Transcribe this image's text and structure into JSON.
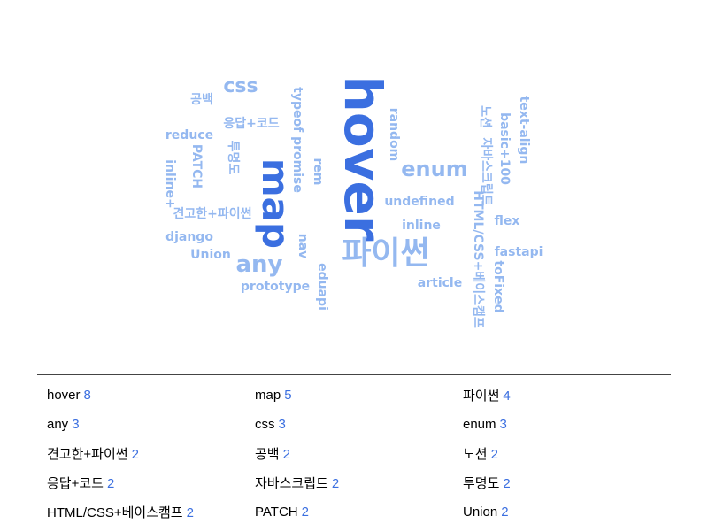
{
  "colors": {
    "strong": "#3b6fe0",
    "mid": "#6f9be8",
    "light": "#94b8f0",
    "count": "#3b6fe0",
    "divider": "#444444"
  },
  "cloud": {
    "words": [
      {
        "text": "hover",
        "weight": 8,
        "rotated": true
      },
      {
        "text": "map",
        "weight": 5,
        "rotated": true
      },
      {
        "text": "파이썬",
        "weight": 4,
        "rotated": false
      },
      {
        "text": "any",
        "weight": 3,
        "rotated": false
      },
      {
        "text": "css",
        "weight": 3,
        "rotated": false
      },
      {
        "text": "enum",
        "weight": 3,
        "rotated": false
      },
      {
        "text": "견고한+파이썬",
        "weight": 2,
        "rotated": false
      },
      {
        "text": "공백",
        "weight": 2,
        "rotated": false
      },
      {
        "text": "노션",
        "weight": 2,
        "rotated": true
      },
      {
        "text": "응답+코드",
        "weight": 2,
        "rotated": false
      },
      {
        "text": "자바스크립트",
        "weight": 2,
        "rotated": true
      },
      {
        "text": "투명도",
        "weight": 2,
        "rotated": true
      },
      {
        "text": "HTML/CSS+베이스캠프",
        "weight": 2,
        "rotated": true
      },
      {
        "text": "PATCH",
        "weight": 2,
        "rotated": true
      },
      {
        "text": "Union",
        "weight": 2,
        "rotated": false
      },
      {
        "text": "reduce",
        "weight": 1,
        "rotated": false
      },
      {
        "text": "inline+",
        "weight": 1,
        "rotated": true
      },
      {
        "text": "django",
        "weight": 1,
        "rotated": false
      },
      {
        "text": "prototype",
        "weight": 1,
        "rotated": false
      },
      {
        "text": "typeof promise",
        "weight": 1,
        "rotated": true
      },
      {
        "text": "rem",
        "weight": 1,
        "rotated": true
      },
      {
        "text": "nav",
        "weight": 1,
        "rotated": true
      },
      {
        "text": "eduapi",
        "weight": 1,
        "rotated": true
      },
      {
        "text": "random",
        "weight": 1,
        "rotated": true
      },
      {
        "text": "undefined",
        "weight": 1,
        "rotated": false
      },
      {
        "text": "inline",
        "weight": 1,
        "rotated": false
      },
      {
        "text": "article",
        "weight": 1,
        "rotated": false
      },
      {
        "text": "text-align",
        "weight": 1,
        "rotated": true
      },
      {
        "text": "basic+100",
        "weight": 1,
        "rotated": true
      },
      {
        "text": "flex",
        "weight": 1,
        "rotated": false
      },
      {
        "text": "fastapi",
        "weight": 1,
        "rotated": false
      },
      {
        "text": "toFixed",
        "weight": 1,
        "rotated": true
      }
    ]
  },
  "stats": [
    [
      {
        "term": "hover",
        "count": "8"
      },
      {
        "term": "map",
        "count": "5"
      },
      {
        "term": "파이썬",
        "count": "4"
      }
    ],
    [
      {
        "term": "any",
        "count": "3"
      },
      {
        "term": "css",
        "count": "3"
      },
      {
        "term": "enum",
        "count": "3"
      }
    ],
    [
      {
        "term": "견고한+파이썬",
        "count": "2"
      },
      {
        "term": "공백",
        "count": "2"
      },
      {
        "term": "노션",
        "count": "2"
      }
    ],
    [
      {
        "term": "응답+코드",
        "count": "2"
      },
      {
        "term": "자바스크립트",
        "count": "2"
      },
      {
        "term": "투명도",
        "count": "2"
      }
    ],
    [
      {
        "term": "HTML/CSS+베이스캠프",
        "count": "2"
      },
      {
        "term": "PATCH",
        "count": "2"
      },
      {
        "term": "Union",
        "count": "2"
      }
    ]
  ]
}
